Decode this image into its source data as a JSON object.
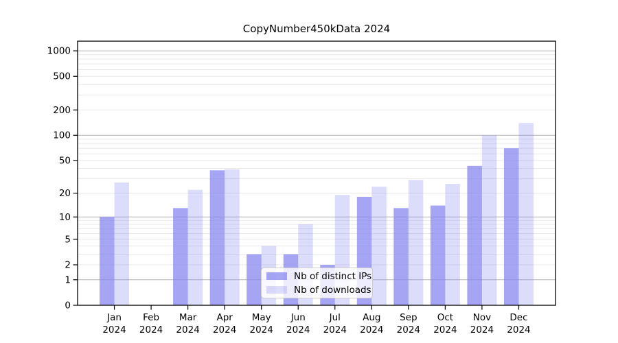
{
  "title": "CopyNumber450kData 2024",
  "legend": {
    "items": [
      {
        "label": "Nb of distinct IPs",
        "color": "rgba(130,130,240,0.72)"
      },
      {
        "label": "Nb of downloads",
        "color": "rgba(130,130,240,0.28)"
      }
    ]
  },
  "chart_data": {
    "type": "bar",
    "title": "CopyNumber450kData 2024",
    "categories": [
      "Jan 2024",
      "Feb 2024",
      "Mar 2024",
      "Apr 2024",
      "May 2024",
      "Jun 2024",
      "Jul 2024",
      "Aug 2024",
      "Sep 2024",
      "Oct 2024",
      "Nov 2024",
      "Dec 2024"
    ],
    "month_labels": [
      "Jan",
      "Feb",
      "Mar",
      "Apr",
      "May",
      "Jun",
      "Jul",
      "Aug",
      "Sep",
      "Oct",
      "Nov",
      "Dec"
    ],
    "year_label": "2024",
    "series": [
      {
        "name": "Nb of distinct IPs",
        "values": [
          10,
          0,
          13,
          38,
          3,
          3,
          2,
          18,
          13,
          14,
          43,
          70
        ]
      },
      {
        "name": "Nb of downloads",
        "values": [
          27,
          0,
          22,
          39,
          4,
          8,
          19,
          24,
          29,
          26,
          100,
          140
        ]
      }
    ],
    "xlabel": "",
    "ylabel": "",
    "yscale": "log1p",
    "ylim": [
      0,
      1300
    ],
    "yticks": [
      0,
      1,
      2,
      5,
      10,
      20,
      50,
      100,
      200,
      500,
      1000
    ],
    "grid": true,
    "legend_position": "lower center"
  },
  "colors": {
    "bar_distinct_ips": "rgba(130,130,240,0.72)",
    "bar_downloads": "rgba(130,130,240,0.28)",
    "grid_major": "#b4b4b4",
    "grid_minor": "#e8e8e8",
    "axis_frame": "#000000",
    "text": "#000000"
  }
}
